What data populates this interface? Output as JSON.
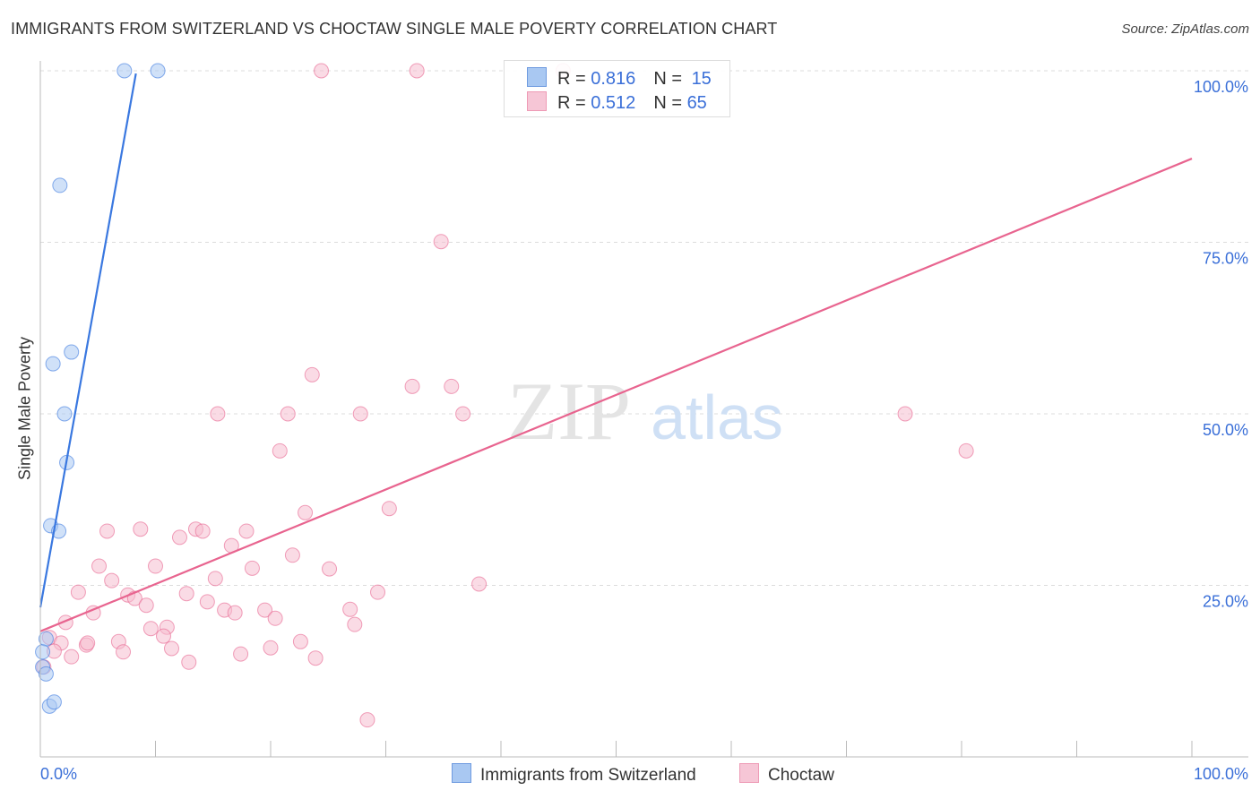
{
  "title": "IMMIGRANTS FROM SWITZERLAND VS CHOCTAW SINGLE MALE POVERTY CORRELATION CHART",
  "source": "Source: ZipAtlas.com",
  "watermark": "ZIPatlas",
  "legend": {
    "rows": [
      {
        "r_label": "R = ",
        "r": "0.816",
        "n_label": "N = ",
        "n": "15"
      },
      {
        "r_label": "R = ",
        "r": "0.512",
        "n_label": "N = ",
        "n": "65"
      }
    ]
  },
  "chart_data": {
    "type": "scatter",
    "title": "IMMIGRANTS FROM SWITZERLAND VS CHOCTAW SINGLE MALE POVERTY CORRELATION CHART",
    "xlabel": "",
    "ylabel": "Single Male Poverty",
    "xlim": [
      0,
      100
    ],
    "ylim": [
      0,
      100
    ],
    "x_tick_labels": [
      "0.0%",
      "100.0%"
    ],
    "y_ticks": [
      25,
      50,
      75,
      100
    ],
    "y_tick_labels": [
      "25.0%",
      "50.0%",
      "75.0%",
      "100.0%"
    ],
    "grid": true,
    "legend_position": "top-center",
    "colors": {
      "blue": "#3a78e0",
      "blue_fill": "#a9c8f2",
      "pink": "#e8648f",
      "pink_fill": "#f6bdd0"
    },
    "series": [
      {
        "name": "Immigrants from Switzerland",
        "color": "blue",
        "trend": {
          "x": [
            0,
            8.3
          ],
          "y": [
            21.8,
            99.6
          ]
        },
        "points": [
          [
            7.3,
            100
          ],
          [
            10.2,
            100
          ],
          [
            1.7,
            83.3
          ],
          [
            2.7,
            59.0
          ],
          [
            1.1,
            57.3
          ],
          [
            2.1,
            50.0
          ],
          [
            2.3,
            42.9
          ],
          [
            0.9,
            33.7
          ],
          [
            1.6,
            32.9
          ],
          [
            0.5,
            17.2
          ],
          [
            0.2,
            13.1
          ],
          [
            0.5,
            12.1
          ],
          [
            0.8,
            7.4
          ],
          [
            1.2,
            8.0
          ],
          [
            0.2,
            15.3
          ]
        ]
      },
      {
        "name": "Choctaw",
        "color": "pink",
        "trend": {
          "x": [
            0,
            100
          ],
          "y": [
            18.3,
            87.2
          ]
        },
        "points": [
          [
            24.4,
            100
          ],
          [
            32.7,
            100
          ],
          [
            45.4,
            100
          ],
          [
            34.8,
            75.1
          ],
          [
            23.6,
            55.7
          ],
          [
            32.3,
            54.0
          ],
          [
            35.7,
            54.0
          ],
          [
            15.4,
            50.0
          ],
          [
            21.5,
            50.0
          ],
          [
            27.8,
            50.0
          ],
          [
            36.7,
            50.0
          ],
          [
            75.1,
            50.0
          ],
          [
            80.4,
            44.6
          ],
          [
            20.8,
            44.6
          ],
          [
            30.3,
            36.2
          ],
          [
            23.0,
            35.6
          ],
          [
            5.8,
            32.9
          ],
          [
            8.7,
            33.2
          ],
          [
            13.5,
            33.2
          ],
          [
            14.1,
            32.9
          ],
          [
            12.1,
            32.0
          ],
          [
            17.9,
            32.9
          ],
          [
            16.6,
            30.8
          ],
          [
            21.9,
            29.4
          ],
          [
            5.1,
            27.8
          ],
          [
            10.0,
            27.8
          ],
          [
            18.4,
            27.5
          ],
          [
            25.1,
            27.4
          ],
          [
            6.2,
            25.7
          ],
          [
            15.2,
            26.0
          ],
          [
            38.1,
            25.2
          ],
          [
            3.3,
            24.0
          ],
          [
            7.6,
            23.6
          ],
          [
            8.2,
            23.1
          ],
          [
            9.2,
            22.1
          ],
          [
            12.7,
            23.8
          ],
          [
            29.3,
            24.0
          ],
          [
            14.5,
            22.6
          ],
          [
            26.9,
            21.5
          ],
          [
            2.2,
            19.6
          ],
          [
            4.6,
            21.0
          ],
          [
            16.0,
            21.4
          ],
          [
            16.9,
            21.0
          ],
          [
            19.5,
            21.4
          ],
          [
            20.4,
            20.2
          ],
          [
            9.6,
            18.7
          ],
          [
            11.0,
            18.9
          ],
          [
            10.7,
            17.6
          ],
          [
            27.3,
            19.3
          ],
          [
            0.8,
            17.4
          ],
          [
            1.8,
            16.6
          ],
          [
            4.0,
            16.3
          ],
          [
            4.1,
            16.6
          ],
          [
            6.8,
            16.8
          ],
          [
            22.6,
            16.8
          ],
          [
            1.2,
            15.4
          ],
          [
            2.7,
            14.6
          ],
          [
            7.2,
            15.3
          ],
          [
            11.4,
            15.8
          ],
          [
            20.0,
            15.9
          ],
          [
            17.4,
            15.0
          ],
          [
            12.9,
            13.8
          ],
          [
            23.9,
            14.4
          ],
          [
            28.4,
            5.4
          ],
          [
            0.3,
            13.1
          ]
        ]
      }
    ]
  }
}
